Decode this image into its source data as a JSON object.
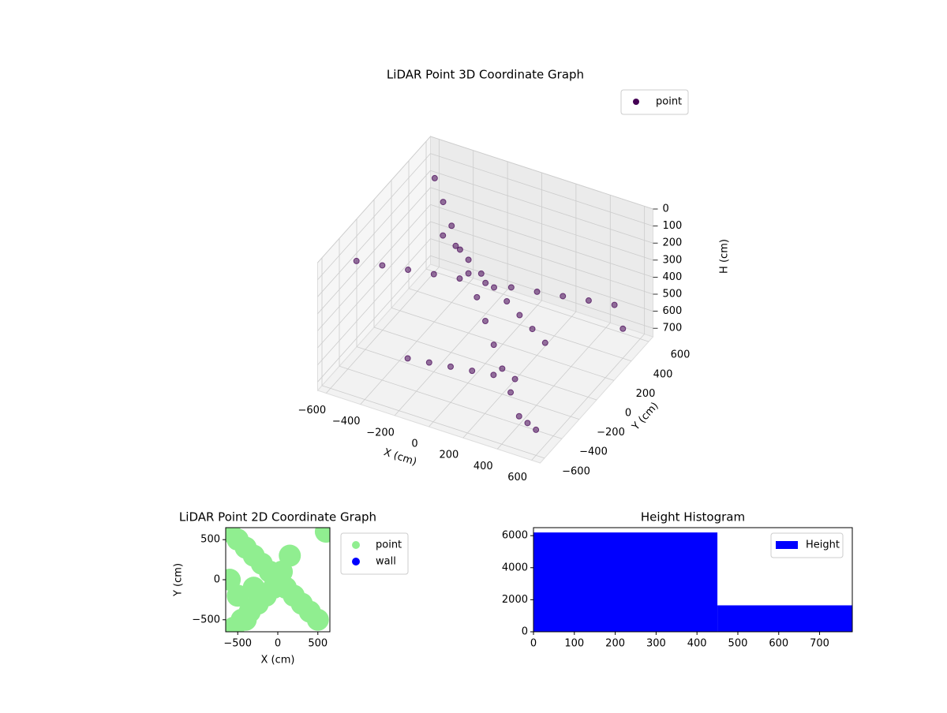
{
  "chart_data": [
    {
      "type": "scatter3d",
      "title": "LiDAR Point 3D Coordinate Graph",
      "x_label": "X (cm)",
      "y_label": "Y (cm)",
      "z_label": "H (cm)",
      "xlim": [
        -650,
        650
      ],
      "ylim": [
        -650,
        650
      ],
      "zlim": [
        0,
        750
      ],
      "zinvert": true,
      "grid": true,
      "legend": "upper right",
      "xticks": [
        {
          "value": -600,
          "label": "−600"
        },
        {
          "value": -400,
          "label": "−400"
        },
        {
          "value": -200,
          "label": "−200"
        },
        0,
        200,
        400,
        600
      ],
      "yticks": [
        {
          "value": -600,
          "label": "−600"
        },
        {
          "value": -400,
          "label": "−400"
        },
        {
          "value": -200,
          "label": "−200"
        },
        0,
        200,
        400,
        600
      ],
      "zticks": [
        0,
        100,
        200,
        300,
        400,
        500,
        600,
        700
      ],
      "series": [
        {
          "name": "point",
          "color": "#440154",
          "x": [
            -600,
            -500,
            -400,
            -300,
            -200,
            -100,
            0,
            100,
            200,
            300,
            400,
            500,
            600,
            -550,
            -450,
            -350,
            -250,
            -150,
            -50,
            50,
            150,
            250,
            350,
            450,
            550,
            -400,
            -300,
            -200,
            -100,
            0,
            100,
            200,
            300,
            400,
            -200,
            -100,
            0,
            100,
            200,
            300
          ],
          "y": [
            600,
            500,
            400,
            300,
            200,
            100,
            0,
            -100,
            -200,
            -300,
            -400,
            -500,
            -600,
            -400,
            -300,
            -200,
            -100,
            0,
            100,
            200,
            300,
            400,
            500,
            600,
            500,
            300,
            250,
            200,
            150,
            100,
            50,
            0,
            -50,
            -100,
            -500,
            -450,
            -400,
            -350,
            -300,
            -250
          ],
          "z": [
            200,
            250,
            300,
            350,
            400,
            450,
            500,
            550,
            600,
            650,
            700,
            650,
            600,
            100,
            150,
            200,
            250,
            300,
            350,
            400,
            450,
            500,
            550,
            600,
            650,
            300,
            300,
            320,
            340,
            360,
            380,
            400,
            420,
            440,
            500,
            520,
            540,
            560,
            580,
            600
          ]
        }
      ]
    },
    {
      "type": "scatter",
      "title": "LiDAR Point 2D Coordinate Graph",
      "x_label": "X (cm)",
      "y_label": "Y (cm)",
      "xlim": [
        -650,
        650
      ],
      "ylim": [
        -650,
        650
      ],
      "legend": "outside right",
      "xticks": [
        {
          "value": -500,
          "label": "−500"
        },
        0,
        500
      ],
      "yticks": [
        {
          "value": -500,
          "label": "−500"
        },
        0,
        500
      ],
      "series": [
        {
          "name": "point",
          "color": "#90ee90",
          "x": [
            -600,
            -500,
            -400,
            -300,
            -200,
            -100,
            0,
            100,
            200,
            300,
            400,
            500,
            600,
            -550,
            -450,
            -350,
            -250,
            -150,
            -50,
            50,
            150,
            -600,
            -500,
            -400,
            -300
          ],
          "y": [
            600,
            500,
            400,
            300,
            200,
            100,
            0,
            -100,
            -200,
            -300,
            -400,
            -500,
            600,
            -600,
            -500,
            -400,
            -300,
            -200,
            -100,
            100,
            300,
            0,
            -200,
            -500,
            -100
          ]
        },
        {
          "name": "wall",
          "color": "#0000ff",
          "x": [],
          "y": []
        }
      ]
    },
    {
      "type": "histogram",
      "title": "Height Histogram",
      "legend": "upper right",
      "bins": [
        0,
        450,
        780
      ],
      "counts": [
        6200,
        1650
      ],
      "series_name": "Height",
      "color": "#0000ff",
      "xlim": [
        0,
        780
      ],
      "ylim": [
        0,
        6500
      ],
      "xticks": [
        0,
        100,
        200,
        300,
        400,
        500,
        600,
        700
      ],
      "yticks": [
        0,
        2000,
        4000,
        6000
      ]
    }
  ]
}
